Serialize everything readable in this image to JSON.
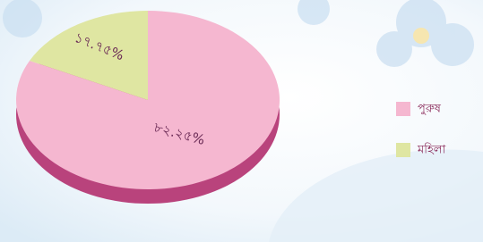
{
  "chart_data": {
    "type": "pie",
    "categories": [
      "পুরুষ",
      "মহিলা"
    ],
    "values": [
      82.25,
      17.75
    ],
    "value_labels": [
      "৮২.২৫%",
      "১৭.৭৫%"
    ],
    "colors": [
      "#f5b7d0",
      "#dfe6a2"
    ]
  }
}
